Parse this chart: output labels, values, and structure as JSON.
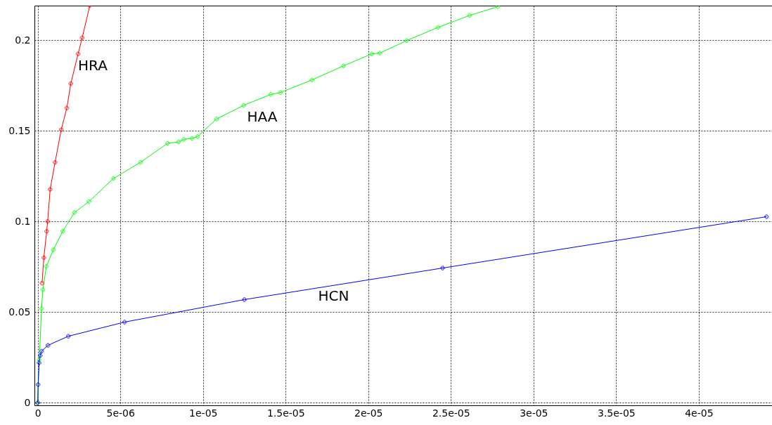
{
  "chart_data": {
    "type": "line",
    "xlim": [
      -2e-07,
      4.443e-05
    ],
    "ylim": [
      -0.0014,
      0.219
    ],
    "xticks": [
      0,
      {
        "value": 5e-06,
        "label": "5e-06"
      },
      {
        "value": 1e-05,
        "label": "1e-05"
      },
      {
        "value": 1.5e-05,
        "label": "1.5e-05"
      },
      {
        "value": 2e-05,
        "label": "2e-05"
      },
      {
        "value": 2.5e-05,
        "label": "2.5e-05"
      },
      {
        "value": 3e-05,
        "label": "3e-05"
      },
      {
        "value": 3.5e-05,
        "label": "3.5e-05"
      },
      {
        "value": 4e-05,
        "label": "4e-05"
      }
    ],
    "yticks": [
      0,
      0.05,
      0.1,
      0.15,
      0.2
    ],
    "grid": true,
    "marker": "cross",
    "line_style": "solid",
    "series": [
      {
        "name": "HRA",
        "color": "#ff0000",
        "x": [
          2.6e-07,
          3.7e-07,
          5.4e-07,
          6e-07,
          7.5e-07,
          1.05e-06,
          1.42e-06,
          1.76e-06,
          2e-06,
          2.44e-06,
          2.69e-06,
          3.15e-06
        ],
        "values": [
          0.066,
          0.08,
          0.0946,
          0.1,
          0.1177,
          0.1326,
          0.1506,
          0.1625,
          0.176,
          0.1924,
          0.2013,
          0.219
        ]
      },
      {
        "name": "HAA",
        "color": "#00ff00",
        "x": [
          0,
          9e-08,
          2.3e-07,
          3.1e-07,
          5.2e-07,
          9.4e-07,
          1.51e-06,
          2.22e-06,
          3.1e-06,
          4.58e-06,
          6.22e-06,
          7.86e-06,
          8.52e-06,
          8.84e-06,
          9.33e-06,
          9.67e-06,
          1.082e-05,
          1.246e-05,
          1.409e-05,
          1.469e-05,
          1.659e-05,
          1.85e-05,
          2.022e-05,
          2.07e-05,
          2.232e-05,
          2.422e-05,
          2.613e-05,
          2.784e-05
        ],
        "values": [
          0,
          0.0237,
          0.052,
          0.0624,
          0.0752,
          0.0843,
          0.0946,
          0.1049,
          0.111,
          0.1237,
          0.1326,
          0.1431,
          0.1438,
          0.1453,
          0.1458,
          0.1468,
          0.1565,
          0.164,
          0.17,
          0.1711,
          0.178,
          0.1858,
          0.1924,
          0.1928,
          0.1997,
          0.207,
          0.2136,
          0.2184
        ]
      },
      {
        "name": "HCN",
        "color": "#0000ff",
        "x": [
          0,
          2e-08,
          8e-08,
          1.5e-07,
          2.3e-07,
          6.2e-07,
          1.85e-06,
          5.25e-06,
          1.25e-05,
          2.45e-05,
          4.41e-05
        ],
        "values": [
          0,
          0.01,
          0.022,
          0.026,
          0.0284,
          0.0317,
          0.0367,
          0.0445,
          0.0569,
          0.0743,
          0.1026
        ]
      }
    ]
  }
}
